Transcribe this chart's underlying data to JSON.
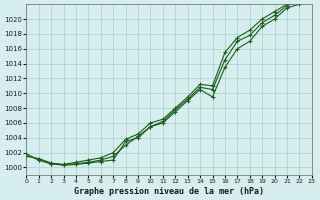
{
  "title": "Graphe pression niveau de la mer (hPa)",
  "xlabel": "Graphe pression niveau de la mer (hPa)",
  "xlim": [
    0,
    23
  ],
  "ylim": [
    999,
    1022
  ],
  "yticks": [
    1000,
    1002,
    1004,
    1006,
    1008,
    1010,
    1012,
    1014,
    1016,
    1018,
    1020
  ],
  "xticks": [
    0,
    1,
    2,
    3,
    4,
    5,
    6,
    7,
    8,
    9,
    10,
    11,
    12,
    13,
    14,
    15,
    16,
    17,
    18,
    19,
    20,
    21,
    22,
    23
  ],
  "background_color": "#d6eeee",
  "grid_color": "#aacccc",
  "line_color": "#1a5c1a",
  "line1_y": [
    1001.8,
    1001.0,
    1000.5,
    1000.3,
    1000.4,
    1000.6,
    1000.8,
    1001.0,
    1003.5,
    1004.0,
    1005.5,
    1006.0,
    1007.5,
    1009.0,
    1010.5,
    1009.5,
    1013.5,
    1016.0,
    1017.0,
    1019.0,
    1020.0,
    1021.5,
    1022.0
  ],
  "line2_y": [
    1001.8,
    1001.0,
    1000.5,
    1000.4,
    1000.5,
    1000.7,
    1001.0,
    1001.5,
    1003.0,
    1004.2,
    1005.5,
    1006.2,
    1007.8,
    1009.2,
    1010.8,
    1010.5,
    1014.5,
    1017.0,
    1017.8,
    1019.5,
    1020.5,
    1021.8,
    1022.5
  ],
  "line3_y": [
    1001.5,
    1001.2,
    1000.6,
    1000.4,
    1000.7,
    1001.0,
    1001.3,
    1002.0,
    1003.8,
    1004.5,
    1006.0,
    1006.5,
    1008.0,
    1009.5,
    1011.2,
    1011.0,
    1015.5,
    1017.5,
    1018.5,
    1020.0,
    1021.0,
    1022.0,
    1022.8
  ],
  "x": [
    0,
    1,
    2,
    3,
    4,
    5,
    6,
    7,
    8,
    9,
    10,
    11,
    12,
    13,
    14,
    15,
    16,
    17,
    18,
    19,
    20,
    21,
    22
  ]
}
